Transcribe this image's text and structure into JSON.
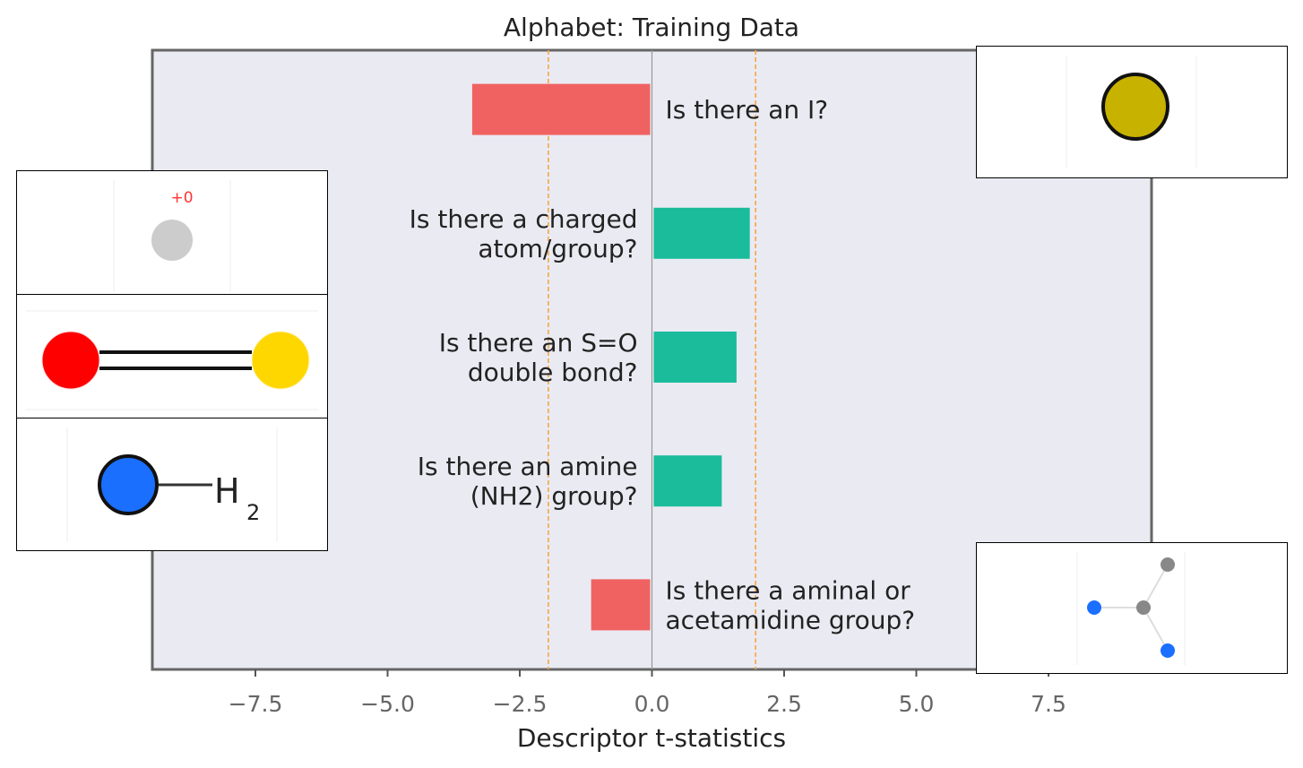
{
  "chart_data": {
    "type": "bar",
    "orientation": "horizontal",
    "title": "Alphabet: Training Data",
    "xlabel": "Descriptor t-statistics",
    "ylabel": "",
    "xlim": [
      -9.5,
      9.5
    ],
    "xticks": [
      -7.5,
      -5.0,
      -2.5,
      0.0,
      2.5,
      5.0,
      7.5
    ],
    "xtick_labels": [
      "−7.5",
      "−5.0",
      "−2.5",
      "0.0",
      "2.5",
      "5.0",
      "7.5"
    ],
    "significance_lines": [
      -1.96,
      1.96
    ],
    "grid": false,
    "categories": [
      "Is there an I?",
      "Is there a charged atom/group?",
      "Is there an S=O double bond?",
      "Is there an amine (NH2) group?",
      "Is there a aminal or acetamidine group?"
    ],
    "bar_label_lines": [
      [
        "Is there an I?"
      ],
      [
        "Is there a charged",
        "atom/group?"
      ],
      [
        "Is there an S=O",
        "double bond?"
      ],
      [
        "Is there an amine",
        "(NH2) group?"
      ],
      [
        "Is there a aminal or",
        "acetamidine group?"
      ]
    ],
    "values": [
      -3.4,
      1.85,
      1.6,
      1.32,
      -1.15
    ],
    "colors": {
      "negative": "#f06262",
      "positive": "#1abc9c",
      "plot_background": "#eaeaf2",
      "significance_line": "#f5a742",
      "zero_line": "#999999",
      "frame": "#666666"
    }
  },
  "insets": {
    "charge_label": "+0",
    "h_label": "H",
    "h_subscript": "2"
  }
}
